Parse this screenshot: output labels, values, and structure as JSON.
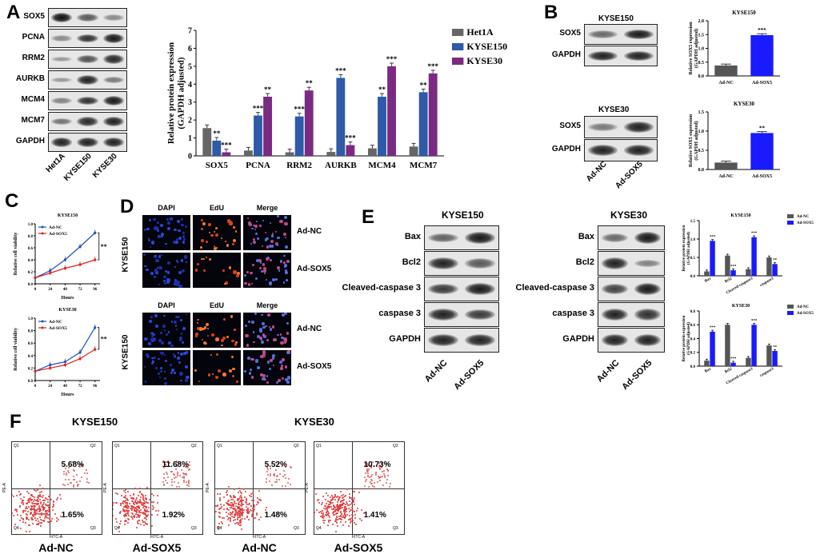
{
  "panels": {
    "A": "A",
    "B": "B",
    "C": "C",
    "D": "D",
    "E": "E",
    "F": "F"
  },
  "panelA": {
    "rows": [
      "SOX5",
      "PCNA",
      "RRM2",
      "AURKB",
      "MCM4",
      "MCM7",
      "GAPDH"
    ],
    "lanes": [
      "Het1A",
      "KYSE150",
      "KYSE30"
    ],
    "intensity": [
      [
        1.0,
        0.55,
        0.25
      ],
      [
        0.25,
        0.8,
        0.95
      ],
      [
        0.15,
        0.6,
        0.85
      ],
      [
        0.15,
        0.9,
        0.35
      ],
      [
        0.3,
        0.8,
        0.95
      ],
      [
        0.4,
        0.85,
        0.9
      ],
      [
        0.9,
        0.9,
        0.9
      ]
    ]
  },
  "chart_data": [
    {
      "type": "bar",
      "categories": [
        "SOX5",
        "PCNA",
        "RRM2",
        "AURKB",
        "MCM4",
        "MCM7"
      ],
      "series": [
        {
          "name": "Het1A",
          "color": "#666666",
          "values": [
            1.55,
            0.3,
            0.2,
            0.22,
            0.42,
            0.52
          ],
          "sig": [
            "",
            "",
            "",
            "",
            "",
            ""
          ]
        },
        {
          "name": "KYSE150",
          "color": "#2e5aa8",
          "values": [
            0.85,
            2.25,
            2.2,
            4.35,
            3.3,
            3.55
          ],
          "sig": [
            "**",
            "***",
            "***",
            "***",
            "**",
            "**"
          ]
        },
        {
          "name": "KYSE30",
          "color": "#7b2a82",
          "values": [
            0.2,
            3.3,
            3.65,
            0.6,
            5.0,
            4.6
          ],
          "sig": [
            "***",
            "**",
            "**",
            "***",
            "***",
            "***"
          ]
        }
      ],
      "ylabel": "Relative protein expression\n(GAPDH adjusted)",
      "ylim": [
        0,
        7
      ],
      "yticks": [
        "0",
        "1",
        "2",
        "3",
        "4",
        "5",
        "6",
        "7"
      ]
    },
    {
      "type": "bar",
      "title": "KYSE150",
      "categories": [
        "Ad-NC",
        "Ad-SOX5"
      ],
      "values": [
        0.38,
        1.48
      ],
      "colors": [
        "#555555",
        "#1a1aff"
      ],
      "sig": [
        "",
        "***"
      ],
      "ylabel": "Relative SOX5 expression\n(GAPDH adjusted)",
      "ylim": [
        0,
        2.0
      ],
      "yticks": [
        "0.0",
        "0.5",
        "1.0",
        "1.5",
        "2.0"
      ]
    },
    {
      "type": "bar",
      "title": "KYSE30",
      "categories": [
        "Ad-NC",
        "Ad-SOX5"
      ],
      "values": [
        0.18,
        0.95
      ],
      "colors": [
        "#555555",
        "#1a1aff"
      ],
      "sig": [
        "",
        "**"
      ],
      "ylabel": "Relative SOX5 expression\n(GAPDH adjusted)",
      "ylim": [
        0,
        1.5
      ],
      "yticks": [
        "0.0",
        "0.5",
        "1.0",
        "1.5"
      ]
    },
    {
      "type": "line",
      "title": "KYSE150",
      "x": [
        0,
        24,
        48,
        72,
        96
      ],
      "series": [
        {
          "name": "Ad-NC",
          "color": "#1f4fbf",
          "values": [
            0.1,
            0.22,
            0.4,
            0.62,
            0.85
          ]
        },
        {
          "name": "Ad-SOX5",
          "color": "#e02020",
          "values": [
            0.1,
            0.18,
            0.26,
            0.32,
            0.4
          ]
        }
      ],
      "sig": "**",
      "xlabel": "Hours",
      "ylabel": "Relative cell viability",
      "ylim": [
        0,
        1.0
      ],
      "yticks": [
        "0.0",
        "0.2",
        "0.4",
        "0.6",
        "0.8",
        "1.0"
      ]
    },
    {
      "type": "line",
      "title": "KYSE30",
      "x": [
        0,
        24,
        48,
        72,
        96
      ],
      "series": [
        {
          "name": "Ad-NC",
          "color": "#1f4fbf",
          "values": [
            0.15,
            0.25,
            0.3,
            0.45,
            0.85
          ]
        },
        {
          "name": "Ad-SOX5",
          "color": "#e02020",
          "values": [
            0.15,
            0.2,
            0.25,
            0.35,
            0.5
          ]
        }
      ],
      "sig": "**",
      "xlabel": "Hours",
      "ylabel": "Relative cell viability",
      "ylim": [
        0,
        1.0
      ],
      "yticks": [
        "0.0",
        "0.2",
        "0.4",
        "0.6",
        "0.8",
        "1.0"
      ]
    },
    {
      "type": "bar",
      "title": "KYSE150",
      "categories": [
        "Bax",
        "Bcl2",
        "Cleaved-caspase3",
        "caspase3"
      ],
      "series": [
        {
          "name": "Ad-NC",
          "color": "#555555",
          "values": [
            0.12,
            0.55,
            0.18,
            0.5
          ],
          "sig": [
            "",
            "",
            "",
            ""
          ]
        },
        {
          "name": "Ad-SOX5",
          "color": "#1a1aff",
          "values": [
            0.95,
            0.15,
            1.05,
            0.32
          ],
          "sig": [
            "***",
            "***",
            "***",
            "**"
          ]
        }
      ],
      "ylabel": "Relative protein expression\n(GAPDH adjusted)",
      "ylim": [
        0,
        1.5
      ],
      "yticks": [
        "0.0",
        "0.5",
        "1.0",
        "1.5"
      ]
    },
    {
      "type": "bar",
      "title": "KYSE30",
      "categories": [
        "Bax",
        "Bcl2",
        "Cleaved-caspase3",
        "caspase3"
      ],
      "series": [
        {
          "name": "Ad-NC",
          "color": "#555555",
          "values": [
            0.08,
            0.6,
            0.12,
            0.3
          ],
          "sig": [
            "",
            "",
            "",
            ""
          ]
        },
        {
          "name": "Ad-SOX5",
          "color": "#1a1aff",
          "values": [
            0.5,
            0.05,
            0.6,
            0.22
          ],
          "sig": [
            "***",
            "***",
            "***",
            "**"
          ]
        }
      ],
      "ylabel": "Relative protein expression\n(GAPDH adjusted)",
      "ylim": [
        0,
        0.8
      ],
      "yticks": [
        "0.0",
        "0.2",
        "0.4",
        "0.6",
        "0.8"
      ]
    }
  ],
  "panelB": {
    "blot1": {
      "title": "KYSE150",
      "rows": [
        "SOX5",
        "GAPDH"
      ],
      "intensity": [
        [
          0.45,
          0.95
        ],
        [
          0.9,
          0.9
        ]
      ]
    },
    "blot2": {
      "title": "KYSE30",
      "rows": [
        "SOX5",
        "GAPDH"
      ],
      "intensity": [
        [
          0.35,
          0.9
        ],
        [
          0.9,
          0.9
        ]
      ]
    },
    "lanes": [
      "Ad-NC",
      "Ad-SOX5"
    ]
  },
  "panelD": {
    "headers": [
      "DAPI",
      "EdU",
      "Merge"
    ],
    "groups": [
      "KYSE150",
      "KYSE150"
    ],
    "conditions": [
      "Ad-NC",
      "Ad-SOX5"
    ]
  },
  "panelE": {
    "blot1": {
      "title": "KYSE150",
      "rows": [
        "Bax",
        "Bcl2",
        "Cleaved-caspase 3",
        "caspase 3",
        "GAPDH"
      ],
      "intensity": [
        [
          0.5,
          0.95
        ],
        [
          0.9,
          0.55
        ],
        [
          0.75,
          0.95
        ],
        [
          0.9,
          0.75
        ],
        [
          0.9,
          0.9
        ]
      ]
    },
    "blot2": {
      "title": "KYSE30",
      "rows": [
        "Bax",
        "Bcl2",
        "Cleaved-caspase 3",
        "caspase 3",
        "GAPDH"
      ],
      "intensity": [
        [
          0.45,
          0.95
        ],
        [
          0.9,
          0.3
        ],
        [
          0.7,
          0.95
        ],
        [
          0.9,
          0.8
        ],
        [
          0.9,
          0.9
        ]
      ]
    },
    "lanes": [
      "Ad-NC",
      "Ad-SOX5"
    ]
  },
  "panelF": {
    "groups": [
      {
        "title": "KYSE150",
        "plots": [
          {
            "label": "Ad-NC",
            "q2": "5.68%",
            "q3": "1.65%"
          },
          {
            "label": "Ad-SOX5",
            "q2": "11.68%",
            "q3": "1.92%"
          }
        ]
      },
      {
        "title": "KYSE30",
        "plots": [
          {
            "label": "Ad-NC",
            "q2": "5.52%",
            "q3": "1.48%"
          },
          {
            "label": "Ad-SOX5",
            "q2": "10.73%",
            "q3": "1.41%"
          }
        ]
      }
    ],
    "quadrants": [
      "Q1",
      "Q2",
      "Q3",
      "Q4"
    ],
    "xaxis": "FITC-A",
    "yaxis": "PE-A"
  }
}
